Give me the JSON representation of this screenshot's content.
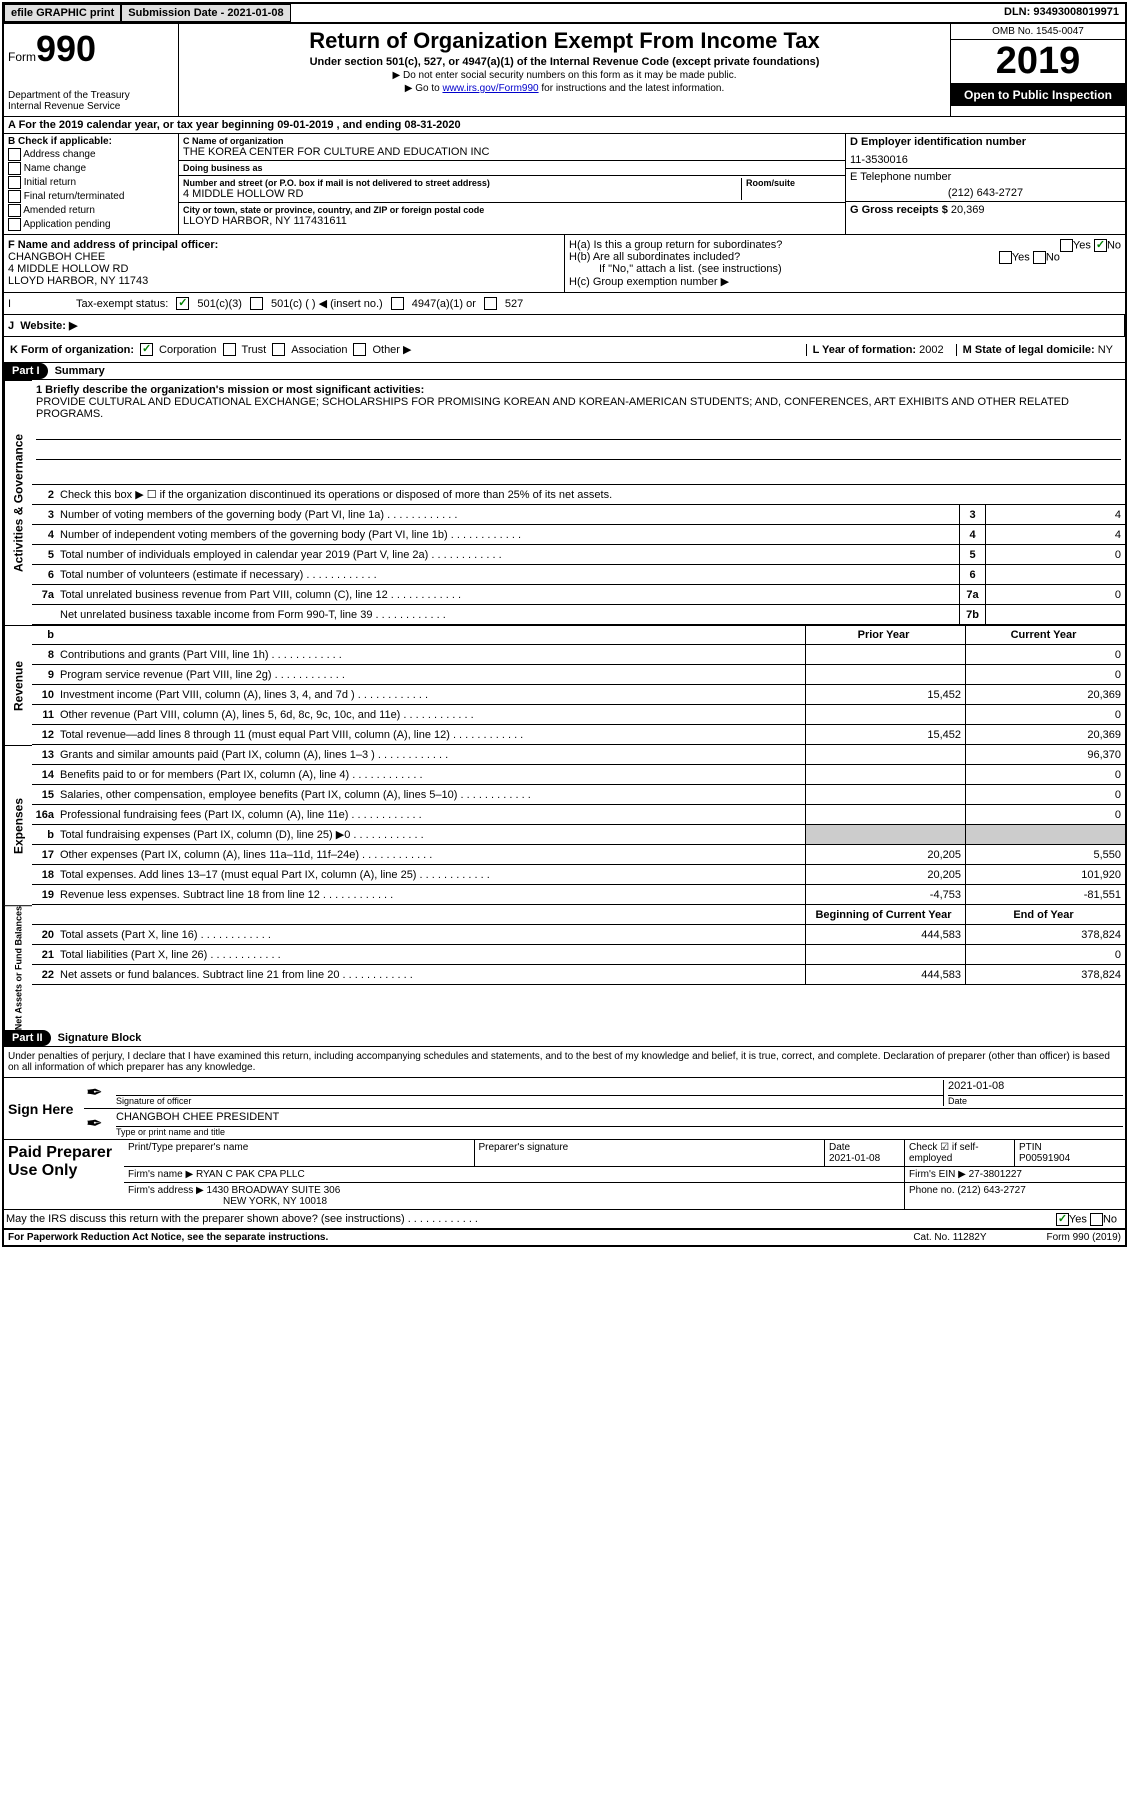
{
  "topbar": {
    "efile": "efile GRAPHIC print",
    "sub_label": "Submission Date - 2021-01-08",
    "dln": "DLN: 93493008019971"
  },
  "header": {
    "form_word": "Form",
    "form_num": "990",
    "dept": "Department of the Treasury\nInternal Revenue Service",
    "title": "Return of Organization Exempt From Income Tax",
    "sub": "Under section 501(c), 527, or 4947(a)(1) of the Internal Revenue Code (except private foundations)",
    "arrow1": "▶ Do not enter social security numbers on this form as it may be made public.",
    "arrow2_pre": "▶ Go to ",
    "arrow2_link": "www.irs.gov/Form990",
    "arrow2_post": " for instructions and the latest information.",
    "omb": "OMB No. 1545-0047",
    "year": "2019",
    "inspect": "Open to Public Inspection"
  },
  "row_a": "A For the 2019 calendar year, or tax year beginning 09-01-2019   , and ending 08-31-2020",
  "col_b": {
    "label": "B Check if applicable:",
    "items": [
      "Address change",
      "Name change",
      "Initial return",
      "Final return/terminated",
      "Amended return",
      "Application pending"
    ]
  },
  "col_c": {
    "name_label": "C Name of organization",
    "name": "THE KOREA CENTER FOR CULTURE AND EDUCATION INC",
    "dba_label": "Doing business as",
    "dba": "",
    "addr_label": "Number and street (or P.O. box if mail is not delivered to street address)",
    "room_label": "Room/suite",
    "addr": "4 MIDDLE HOLLOW RD",
    "city_label": "City or town, state or province, country, and ZIP or foreign postal code",
    "city": "LLOYD HARBOR, NY  117431611"
  },
  "col_d": {
    "ein_label": "D Employer identification number",
    "ein": "11-3530016",
    "tel_label": "E Telephone number",
    "tel": "(212) 643-2727",
    "gross_label": "G Gross receipts $ ",
    "gross": "20,369"
  },
  "officer": {
    "label": "F  Name and address of principal officer:",
    "name": "CHANGBOH CHEE",
    "addr1": "4 MIDDLE HOLLOW RD",
    "addr2": "LLOYD HARBOR, NY  11743"
  },
  "h": {
    "ha": "H(a)  Is this a group return for subordinates?",
    "hb": "H(b)  Are all subordinates included?",
    "hb_note": "If \"No,\" attach a list. (see instructions)",
    "hc": "H(c)  Group exemption number ▶",
    "yes": "Yes",
    "no": "No"
  },
  "status": {
    "label": "Tax-exempt status:",
    "c3": "501(c)(3)",
    "c": "501(c) (  ) ◀ (insert no.)",
    "a1": "4947(a)(1) or",
    "s527": "527"
  },
  "website": {
    "j": "J",
    "label": "Website: ▶"
  },
  "k_row": {
    "k": "K Form of organization:",
    "corp": "Corporation",
    "trust": "Trust",
    "assoc": "Association",
    "other": "Other ▶",
    "l": "L Year of formation: ",
    "l_val": "2002",
    "m": "M State of legal domicile: ",
    "m_val": "NY"
  },
  "part1": {
    "hdr": "Part I",
    "title": "Summary"
  },
  "summary": {
    "l1_label": "1  Briefly describe the organization's mission or most significant activities:",
    "l1_text": "PROVIDE CULTURAL AND EDUCATIONAL EXCHANGE; SCHOLARSHIPS FOR PROMISING KOREAN AND KOREAN-AMERICAN STUDENTS; AND, CONFERENCES, ART EXHIBITS AND OTHER RELATED PROGRAMS.",
    "l2": "Check this box ▶ ☐  if the organization discontinued its operations or disposed of more than 25% of its net assets.",
    "sidetab_ag": "Activities & Governance",
    "sidetab_rev": "Revenue",
    "sidetab_exp": "Expenses",
    "sidetab_na": "Net Assets or Fund Balances",
    "lines_ag": [
      {
        "n": "3",
        "t": "Number of voting members of the governing body (Part VI, line 1a)",
        "box": "3",
        "v": "4"
      },
      {
        "n": "4",
        "t": "Number of independent voting members of the governing body (Part VI, line 1b)",
        "box": "4",
        "v": "4"
      },
      {
        "n": "5",
        "t": "Total number of individuals employed in calendar year 2019 (Part V, line 2a)",
        "box": "5",
        "v": "0"
      },
      {
        "n": "6",
        "t": "Total number of volunteers (estimate if necessary)",
        "box": "6",
        "v": ""
      },
      {
        "n": "7a",
        "t": "Total unrelated business revenue from Part VIII, column (C), line 12",
        "box": "7a",
        "v": "0"
      },
      {
        "n": "",
        "t": "Net unrelated business taxable income from Form 990-T, line 39",
        "box": "7b",
        "v": ""
      }
    ],
    "hdr_prior": "Prior Year",
    "hdr_curr": "Current Year",
    "lines_rev": [
      {
        "n": "8",
        "t": "Contributions and grants (Part VIII, line 1h)",
        "p": "",
        "c": "0"
      },
      {
        "n": "9",
        "t": "Program service revenue (Part VIII, line 2g)",
        "p": "",
        "c": "0"
      },
      {
        "n": "10",
        "t": "Investment income (Part VIII, column (A), lines 3, 4, and 7d )",
        "p": "15,452",
        "c": "20,369"
      },
      {
        "n": "11",
        "t": "Other revenue (Part VIII, column (A), lines 5, 6d, 8c, 9c, 10c, and 11e)",
        "p": "",
        "c": "0"
      },
      {
        "n": "12",
        "t": "Total revenue—add lines 8 through 11 (must equal Part VIII, column (A), line 12)",
        "p": "15,452",
        "c": "20,369"
      }
    ],
    "lines_exp": [
      {
        "n": "13",
        "t": "Grants and similar amounts paid (Part IX, column (A), lines 1–3 )",
        "p": "",
        "c": "96,370"
      },
      {
        "n": "14",
        "t": "Benefits paid to or for members (Part IX, column (A), line 4)",
        "p": "",
        "c": "0"
      },
      {
        "n": "15",
        "t": "Salaries, other compensation, employee benefits (Part IX, column (A), lines 5–10)",
        "p": "",
        "c": "0"
      },
      {
        "n": "16a",
        "t": "Professional fundraising fees (Part IX, column (A), line 11e)",
        "p": "",
        "c": "0"
      },
      {
        "n": "b",
        "t": "Total fundraising expenses (Part IX, column (D), line 25) ▶0",
        "p": "shaded",
        "c": "shaded"
      },
      {
        "n": "17",
        "t": "Other expenses (Part IX, column (A), lines 11a–11d, 11f–24e)",
        "p": "20,205",
        "c": "5,550"
      },
      {
        "n": "18",
        "t": "Total expenses. Add lines 13–17 (must equal Part IX, column (A), line 25)",
        "p": "20,205",
        "c": "101,920"
      },
      {
        "n": "19",
        "t": "Revenue less expenses. Subtract line 18 from line 12",
        "p": "-4,753",
        "c": "-81,551"
      }
    ],
    "hdr_beg": "Beginning of Current Year",
    "hdr_end": "End of Year",
    "lines_na": [
      {
        "n": "20",
        "t": "Total assets (Part X, line 16)",
        "p": "444,583",
        "c": "378,824"
      },
      {
        "n": "21",
        "t": "Total liabilities (Part X, line 26)",
        "p": "",
        "c": "0"
      },
      {
        "n": "22",
        "t": "Net assets or fund balances. Subtract line 21 from line 20",
        "p": "444,583",
        "c": "378,824"
      }
    ]
  },
  "part2": {
    "hdr": "Part II",
    "title": "Signature Block"
  },
  "sig": {
    "decl": "Under penalties of perjury, I declare that I have examined this return, including accompanying schedules and statements, and to the best of my knowledge and belief, it is true, correct, and complete. Declaration of preparer (other than officer) is based on all information of which preparer has any knowledge.",
    "sign_here": "Sign Here",
    "sig_of": "Signature of officer",
    "date": "2021-01-08",
    "date_label": "Date",
    "name": "CHANGBOH CHEE PRESIDENT",
    "name_label": "Type or print name and title"
  },
  "prep": {
    "label": "Paid Preparer Use Only",
    "r1_c1_label": "Print/Type preparer's name",
    "r1_c1": "",
    "r1_c2_label": "Preparer's signature",
    "r1_c2": "",
    "r1_c3_label": "Date",
    "r1_c3": "2021-01-08",
    "r1_c4_label": "Check ☑ if self-employed",
    "r1_c5_label": "PTIN",
    "r1_c5": "P00591904",
    "r2_label": "Firm's name    ▶ ",
    "r2": "RYAN C PAK CPA PLLC",
    "r2b_label": "Firm's EIN ▶ ",
    "r2b": "27-3801227",
    "r3_label": "Firm's address ▶ ",
    "r3": "1430 BROADWAY SUITE 306",
    "r3_city": "NEW YORK, NY  10018",
    "r3b_label": "Phone no. ",
    "r3b": "(212) 643-2727"
  },
  "discuss": "May the IRS discuss this return with the preparer shown above? (see instructions)",
  "footer": {
    "left": "For Paperwork Reduction Act Notice, see the separate instructions.",
    "mid": "Cat. No. 11282Y",
    "right": "Form 990 (2019)"
  }
}
